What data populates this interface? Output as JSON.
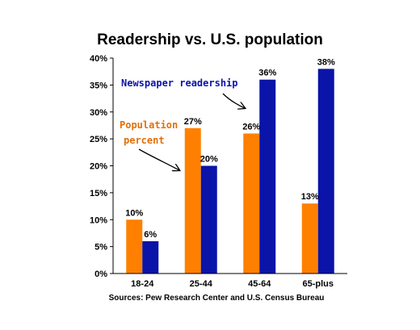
{
  "chart_data": {
    "type": "bar",
    "title": "Readership vs. U.S. population",
    "categories": [
      "18-24",
      "25-44",
      "45-64",
      "65-plus"
    ],
    "series": [
      {
        "name": "Population percent",
        "color": "#FF8000",
        "values": [
          10,
          27,
          26,
          13
        ],
        "labels": [
          "10%",
          "27%",
          "26%",
          "13%"
        ]
      },
      {
        "name": "Newspaper readership",
        "color": "#0A14A8",
        "values": [
          6,
          20,
          36,
          38
        ],
        "labels": [
          "6%",
          "20%",
          "36%",
          "38%"
        ]
      }
    ],
    "ylim": [
      0,
      40
    ],
    "yticks": [
      "0%",
      "5%",
      "10%",
      "15%",
      "20%",
      "25%",
      "30%",
      "35%",
      "40%"
    ],
    "grid": false,
    "annotations": {
      "population_line1": "Population",
      "population_line2": "percent",
      "readership": "Newspaper readership"
    },
    "source": "Sources: Pew Research Center and U.S. Census Bureau"
  }
}
